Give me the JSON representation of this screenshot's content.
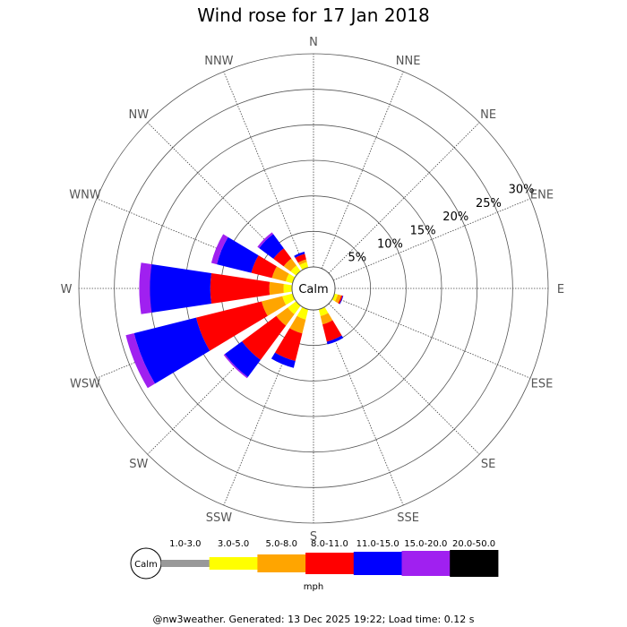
{
  "title": "Wind rose for 17 Jan 2018",
  "footer": "@nw3weather. Generated: 13 Dec 2025 19:22; Load time: 0.12 s",
  "chart_data": {
    "type": "wind-rose",
    "title": "Wind rose for 17 Jan 2018",
    "directions": [
      "N",
      "NNE",
      "NE",
      "ENE",
      "E",
      "ESE",
      "SE",
      "SSE",
      "S",
      "SSW",
      "SW",
      "WSW",
      "W",
      "WNW",
      "NW",
      "NNW"
    ],
    "ring_labels": [
      "5%",
      "10%",
      "15%",
      "20%",
      "25%",
      "30%"
    ],
    "rmax_percent": 30,
    "calm_label": "Calm",
    "unit": "mph",
    "speed_bins": [
      {
        "label": "1.0-3.0",
        "color": "#999999"
      },
      {
        "label": "3.0-5.0",
        "color": "#ffff00"
      },
      {
        "label": "5.0-8.0",
        "color": "#ffa500"
      },
      {
        "label": "8.0-11.0",
        "color": "#ff0000"
      },
      {
        "label": "11.0-15.0",
        "color": "#0000ff"
      },
      {
        "label": "15.0-20.0",
        "color": "#a020f0"
      },
      {
        "label": "20.0-50.0",
        "color": "#000000"
      }
    ],
    "cumulative_percent": {
      "N": [
        0,
        0,
        0,
        0,
        0,
        0,
        0
      ],
      "NNE": [
        0,
        0,
        0,
        0,
        0,
        0,
        0
      ],
      "NE": [
        0,
        0,
        0,
        0,
        0,
        0,
        0
      ],
      "ENE": [
        0,
        0,
        0,
        0,
        0,
        0,
        0
      ],
      "E": [
        0,
        0,
        0,
        0,
        0,
        0,
        0
      ],
      "ESE": [
        0,
        0.5,
        1.0,
        1.2,
        1.3,
        1.3,
        1.3
      ],
      "SE": [
        0,
        0,
        0,
        0,
        0,
        0,
        0
      ],
      "SSE": [
        0,
        1.0,
        2.2,
        4.7,
        5.1,
        5.1,
        5.1
      ],
      "S": [
        0,
        0,
        0,
        0,
        0,
        0,
        0
      ],
      "SSW": [
        0,
        1.5,
        3.5,
        7.5,
        8.5,
        8.5,
        8.5
      ],
      "SW": [
        0,
        1.5,
        3.5,
        9.5,
        12.5,
        12.7,
        12.7
      ],
      "WSW": [
        0,
        1.5,
        4.5,
        14.0,
        23.0,
        24.2,
        24.2
      ],
      "W": [
        0,
        1.2,
        3.2,
        11.5,
        20.0,
        21.5,
        21.5
      ],
      "WNW": [
        0,
        1.0,
        3.0,
        6.0,
        11.0,
        11.8,
        11.8
      ],
      "NW": [
        0,
        1.0,
        2.2,
        4.0,
        6.5,
        6.8,
        6.8
      ],
      "NNW": [
        0,
        0.8,
        1.2,
        2.0,
        2.3,
        2.3,
        2.3
      ]
    }
  }
}
